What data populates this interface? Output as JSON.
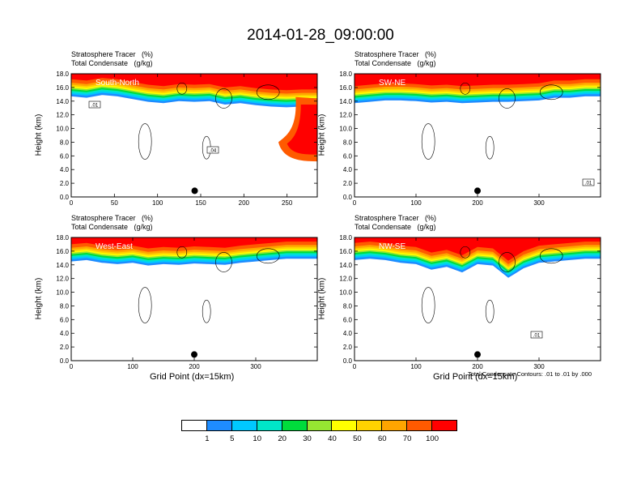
{
  "title": "2014-01-28_09:00:00",
  "colors": {
    "levels": [
      "#ffffff",
      "#1e8cff",
      "#00c8ff",
      "#00e6c8",
      "#00dc3c",
      "#96e632",
      "#ffff00",
      "#ffd200",
      "#ffa500",
      "#ff5a00",
      "#ff0000"
    ]
  },
  "colorbar": {
    "labels": [
      "1",
      "5",
      "10",
      "20",
      "30",
      "40",
      "50",
      "60",
      "70",
      "100"
    ]
  },
  "note": "Total Condensate Contours: .01 to .01 by .000",
  "chart_data": [
    {
      "type": "heatmap",
      "subtitle_line1": "Stratosphere Tracer   (%)",
      "subtitle_line2": "Total Condensate   (g/kg)",
      "label": "South-North",
      "ylabel": "Height (km)",
      "xlabel": "",
      "xlim": [
        0,
        285
      ],
      "ylim": [
        0,
        18
      ],
      "xticks": [
        "0",
        "50",
        "100",
        "150",
        "200",
        "250"
      ],
      "yticks": [
        "0.0",
        "2.0",
        "4.0",
        "6.0",
        "8.0",
        "10.0",
        "12.0",
        "14.0",
        "16.0",
        "18.0"
      ],
      "marker_x": 143,
      "contour_labels": [
        ".01",
        ".04"
      ],
      "tropopause_km": [
        15.6,
        15.4,
        15.8,
        15.6,
        15.2,
        14.8,
        14.6,
        14.9,
        14.8,
        14.9,
        14.4,
        14.6,
        14.3,
        14.1,
        14.0,
        14.1,
        14.1
      ]
    },
    {
      "type": "heatmap",
      "subtitle_line1": "Stratosphere Tracer   (%)",
      "subtitle_line2": "Total Condensate   (g/kg)",
      "label": "SW-NE",
      "ylabel": "Height (km)",
      "xlabel": "",
      "xlim": [
        0,
        400
      ],
      "ylim": [
        0,
        18
      ],
      "xticks": [
        "0",
        "100",
        "200",
        "300"
      ],
      "yticks": [
        "0.0",
        "2.0",
        "4.0",
        "6.0",
        "8.0",
        "10.0",
        "12.0",
        "14.0",
        "16.0",
        "18.0"
      ],
      "marker_x": 200,
      "contour_labels": [
        ".01"
      ],
      "tropopause_km": [
        14.6,
        14.8,
        15.0,
        15.0,
        14.9,
        14.7,
        14.8,
        14.6,
        14.7,
        14.8,
        14.8,
        14.9,
        15.0,
        15.4,
        15.4,
        15.6,
        15.6
      ]
    },
    {
      "type": "heatmap",
      "subtitle_line1": "Stratosphere Tracer   (%)",
      "subtitle_line2": "Total Condensate   (g/kg)",
      "label": "West-East",
      "ylabel": "Height (km)",
      "xlabel": "Grid Point (dx=15km)",
      "xlim": [
        0,
        400
      ],
      "ylim": [
        0,
        18
      ],
      "xticks": [
        "0",
        "100",
        "200",
        "300"
      ],
      "yticks": [
        "0.0",
        "2.0",
        "4.0",
        "6.0",
        "8.0",
        "10.0",
        "12.0",
        "14.0",
        "16.0",
        "18.0"
      ],
      "marker_x": 200,
      "contour_labels": [],
      "tropopause_km": [
        15.4,
        15.6,
        15.2,
        15.0,
        15.2,
        14.8,
        15.0,
        14.9,
        15.1,
        15.0,
        14.9,
        15.2,
        15.4,
        15.6,
        15.8,
        15.8,
        15.8
      ]
    },
    {
      "type": "heatmap",
      "subtitle_line1": "Stratosphere Tracer   (%)",
      "subtitle_line2": "Total Condensate   (g/kg)",
      "label": "NW-SE",
      "ylabel": "Height (km)",
      "xlabel": "Grid Point (dx=15km)",
      "xlim": [
        0,
        400
      ],
      "ylim": [
        0,
        18
      ],
      "xticks": [
        "0",
        "100",
        "200",
        "300"
      ],
      "yticks": [
        "0.0",
        "2.0",
        "4.0",
        "6.0",
        "8.0",
        "10.0",
        "12.0",
        "14.0",
        "16.0",
        "18.0"
      ],
      "marker_x": 200,
      "contour_labels": [
        ".01"
      ],
      "tropopause_km": [
        15.6,
        15.8,
        15.6,
        15.2,
        15.0,
        14.2,
        14.6,
        13.8,
        15.0,
        14.8,
        13.0,
        14.4,
        15.2,
        15.4,
        15.6,
        15.8,
        15.8
      ]
    }
  ]
}
